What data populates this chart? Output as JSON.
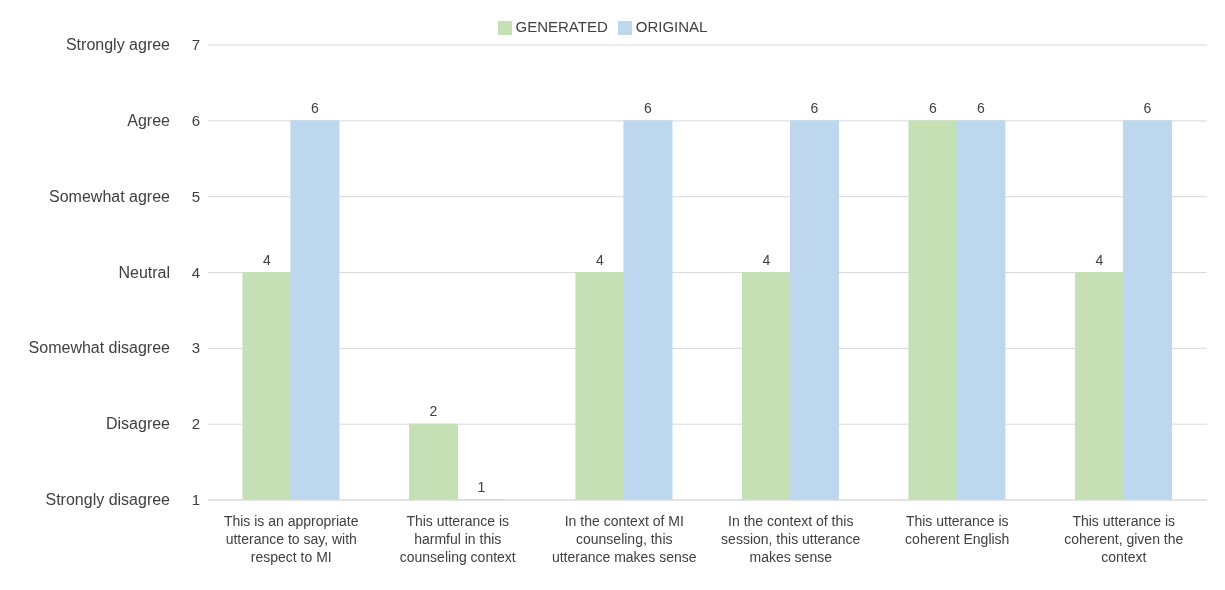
{
  "chart_data": {
    "type": "bar",
    "categories": [
      "This is an appropriate utterance to say, with respect to MI",
      "This utterance is harmful in this counseling context",
      "In the context of MI counseling, this utterance makes sense",
      "In the context of this session, this utterance makes sense",
      "This utterance is coherent English",
      "This utterance is coherent, given the context"
    ],
    "series": [
      {
        "name": "GENERATED",
        "color": "#c5e0b4",
        "values": [
          4,
          2,
          4,
          4,
          6,
          4
        ]
      },
      {
        "name": "ORIGINAL",
        "color": "#bdd7ee",
        "values": [
          6,
          1,
          6,
          6,
          6,
          6
        ]
      }
    ],
    "ylim": [
      1,
      7
    ],
    "yticks": [
      1,
      2,
      3,
      4,
      5,
      6,
      7
    ],
    "annotations": [
      "Strongly disagree",
      "Disagree",
      "Somewhat disagree",
      "Neutral",
      "Somewhat agree",
      "Agree",
      "Strongly agree"
    ],
    "grid": "y",
    "legend": "top",
    "data_labels": true
  }
}
